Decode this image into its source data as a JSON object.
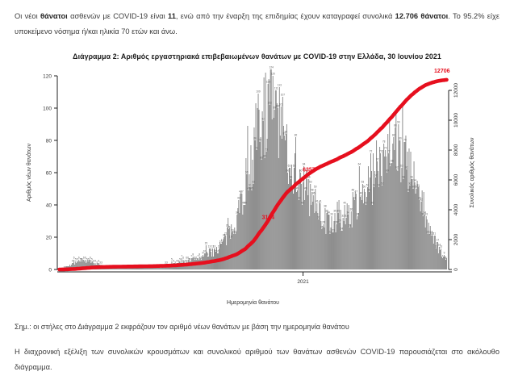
{
  "page": {
    "intro_segments": [
      {
        "text": "Οι νέοι ",
        "bold": false
      },
      {
        "text": "θάνατοι",
        "bold": true
      },
      {
        "text": " ασθενών με COVID-19 είναι ",
        "bold": false
      },
      {
        "text": "11",
        "bold": true
      },
      {
        "text": ", ενώ από την έναρξη της επιδημίας έχουν καταγραφεί συνολικά ",
        "bold": false
      },
      {
        "text": "12.706 θάνατοι",
        "bold": true
      },
      {
        "text": ". Το 95.2% είχε υποκείμενο νόσημα ή/και ηλικία 70 ετών και άνω.",
        "bold": false
      }
    ],
    "figure_note": "Σημ.: οι στήλες στο Διάγραμμα 2 εκφράζουν τον αριθμό νέων θανάτων με βάση την ημερομηνία θανάτου",
    "closing": "Η διαχρονική εξέλιξη των συνολικών κρουσμάτων και συνολικού αριθμού των θανάτων ασθενών COVID-19 παρουσιάζεται στο ακόλουθο διάγραμμα."
  },
  "chart_data": {
    "type": "bar",
    "title": "Διάγραμμα 2: Αριθμός εργαστηριακά επιβεβαιωμένων θανάτων με COVID-19 στην Ελλάδα, 30 Ιουνίου 2021",
    "xlabel": "Ημερομηνία θανάτου",
    "ylabel_left": "Αριθμός νέων θανάτων",
    "ylabel_right": "Συνολικός αριθμός θανάτων",
    "x_ticks": [
      {
        "label": "2021",
        "position": 0.629
      }
    ],
    "left_axis": {
      "ticks": [
        0,
        20,
        40,
        60,
        80,
        100,
        120
      ],
      "max_value": 124
    },
    "right_axis": {
      "ticks": [
        0,
        2000,
        4000,
        6000,
        8000,
        10000,
        12000
      ]
    },
    "colors": {
      "bar": "#8a8a8a",
      "bar_label": "#5d5d5d",
      "line": "#e60f1e",
      "axis_text": "#333333"
    },
    "bars": {
      "name": "Αριθμός νέων θανάτων ανά ημερομηνία θανάτου",
      "count": 476,
      "envelope": [
        [
          0.0,
          0.3
        ],
        [
          0.025,
          2.5
        ],
        [
          0.055,
          6
        ],
        [
          0.085,
          4
        ],
        [
          0.115,
          2
        ],
        [
          0.15,
          1
        ],
        [
          0.22,
          0.8
        ],
        [
          0.27,
          2
        ],
        [
          0.32,
          4.5
        ],
        [
          0.37,
          8
        ],
        [
          0.41,
          13
        ],
        [
          0.44,
          22
        ],
        [
          0.465,
          38
        ],
        [
          0.49,
          62
        ],
        [
          0.515,
          88
        ],
        [
          0.535,
          100
        ],
        [
          0.55,
          103
        ],
        [
          0.565,
          93
        ],
        [
          0.585,
          76
        ],
        [
          0.61,
          60
        ],
        [
          0.635,
          50
        ],
        [
          0.66,
          40
        ],
        [
          0.685,
          30
        ],
        [
          0.71,
          27
        ],
        [
          0.735,
          31
        ],
        [
          0.76,
          38
        ],
        [
          0.785,
          47
        ],
        [
          0.81,
          58
        ],
        [
          0.83,
          70
        ],
        [
          0.85,
          80
        ],
        [
          0.862,
          84
        ],
        [
          0.875,
          78
        ],
        [
          0.895,
          66
        ],
        [
          0.915,
          54
        ],
        [
          0.935,
          40
        ],
        [
          0.955,
          26
        ],
        [
          0.975,
          14
        ],
        [
          1.0,
          6
        ]
      ]
    },
    "line": {
      "name": "Συνολικός αριθμός θανάτων (αθροιστικά)",
      "final_total": 12706
    },
    "annotations": [
      {
        "value": 3164
      },
      {
        "value": 6357
      },
      {
        "value": 12706
      }
    ]
  }
}
